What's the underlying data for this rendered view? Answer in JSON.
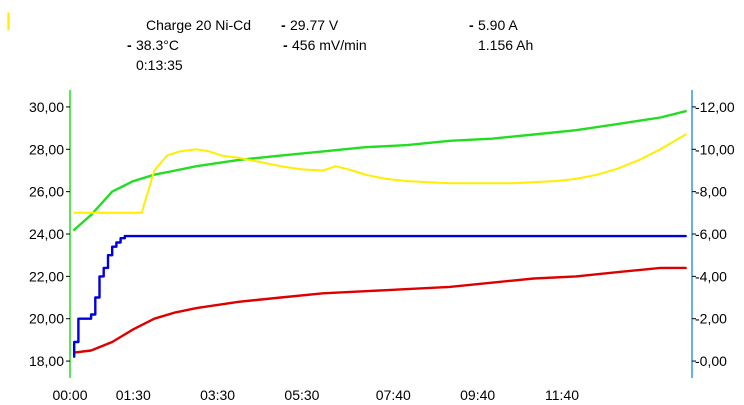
{
  "indicator_glyph": "|",
  "legend": {
    "title": "Charge 20  Ni-Cd",
    "voltage": "29.77 V",
    "current": "5.90 A",
    "temperature": "38.3°C",
    "rate": "456 mV/min",
    "capacity": "1.156 Ah",
    "elapsed": "0:13:35",
    "swatches": {
      "voltage": "-",
      "current": "-",
      "temperature": "-",
      "rate": "-"
    }
  },
  "colors": {
    "voltage": "#22dd22",
    "current": "#0000dd",
    "temperature": "#dd0000",
    "rate": "#ffee00",
    "left_axis": "#22dd22",
    "right_axis": "#3399dd",
    "indicator": "#ffee00"
  },
  "chart_data": {
    "type": "line",
    "x_ticks": [
      "00:00",
      "01:30",
      "03:30",
      "05:30",
      "07:40",
      "09:40",
      "11:40"
    ],
    "x_tick_minutes": [
      0,
      1.5,
      3.5,
      5.5,
      7.667,
      9.667,
      11.667
    ],
    "xlim": [
      0,
      14.75
    ],
    "y_left": {
      "ticks": [
        "30,00",
        "28,00",
        "26,00",
        "24,00",
        "22,00",
        "20,00",
        "18,00"
      ],
      "tick_values": [
        30,
        28,
        26,
        24,
        22,
        20,
        18
      ],
      "ylim": [
        17.2,
        30.8
      ]
    },
    "y_right": {
      "ticks": [
        "12,00",
        "10,00",
        "8,00",
        "6,00",
        "4,00",
        "2,00",
        "0,00"
      ],
      "tick_values": [
        12,
        10,
        8,
        6,
        4,
        2,
        0
      ],
      "ylim": [
        -0.8,
        12.8
      ]
    },
    "series": [
      {
        "key": "voltage",
        "axis": "left",
        "x": [
          0.1,
          0.5,
          1.0,
          1.5,
          2.0,
          2.5,
          3.0,
          4.0,
          5.0,
          6.0,
          7.0,
          8.0,
          9.0,
          10.0,
          11.0,
          12.0,
          13.0,
          14.0,
          14.6
        ],
        "y": [
          24.2,
          24.9,
          26.0,
          26.5,
          26.8,
          27.0,
          27.2,
          27.5,
          27.7,
          27.9,
          28.1,
          28.2,
          28.4,
          28.5,
          28.7,
          28.9,
          29.2,
          29.5,
          29.8
        ]
      },
      {
        "key": "temperature",
        "axis": "left",
        "x": [
          0.1,
          0.5,
          1.0,
          1.5,
          2.0,
          2.5,
          3.0,
          4.0,
          5.0,
          6.0,
          7.0,
          8.0,
          9.0,
          10.0,
          11.0,
          12.0,
          13.0,
          14.0,
          14.6
        ],
        "y": [
          18.4,
          18.5,
          18.9,
          19.5,
          20.0,
          20.3,
          20.5,
          20.8,
          21.0,
          21.2,
          21.3,
          21.4,
          21.5,
          21.7,
          21.9,
          22.0,
          22.2,
          22.4,
          22.4
        ]
      },
      {
        "key": "current",
        "axis": "right",
        "x": [
          0.1,
          0.1,
          0.2,
          0.2,
          0.5,
          0.5,
          0.6,
          0.6,
          0.7,
          0.7,
          0.8,
          0.8,
          0.9,
          0.9,
          1.0,
          1.0,
          1.1,
          1.1,
          1.2,
          1.2,
          1.3,
          1.3,
          14.6
        ],
        "y": [
          0.2,
          0.9,
          0.9,
          2.0,
          2.0,
          2.2,
          2.2,
          3.0,
          3.0,
          4.0,
          4.0,
          4.4,
          4.4,
          5.0,
          5.0,
          5.4,
          5.4,
          5.6,
          5.6,
          5.8,
          5.8,
          5.9,
          5.9
        ]
      },
      {
        "key": "rate",
        "axis": "right",
        "x": [
          0.1,
          0.5,
          1.0,
          1.7,
          2.0,
          2.3,
          2.6,
          3.0,
          3.3,
          3.6,
          4.0,
          4.5,
          5.0,
          5.5,
          6.0,
          6.3,
          6.7,
          7.0,
          7.5,
          8.0,
          9.0,
          10.0,
          10.5,
          11.0,
          11.5,
          12.0,
          12.5,
          13.0,
          13.5,
          14.0,
          14.6
        ],
        "y": [
          7.0,
          7.0,
          7.0,
          7.0,
          9.0,
          9.7,
          9.9,
          10.0,
          9.9,
          9.7,
          9.6,
          9.4,
          9.2,
          9.05,
          9.0,
          9.2,
          9.0,
          8.8,
          8.6,
          8.5,
          8.4,
          8.4,
          8.4,
          8.45,
          8.5,
          8.6,
          8.8,
          9.1,
          9.5,
          10.0,
          10.7
        ]
      }
    ]
  }
}
